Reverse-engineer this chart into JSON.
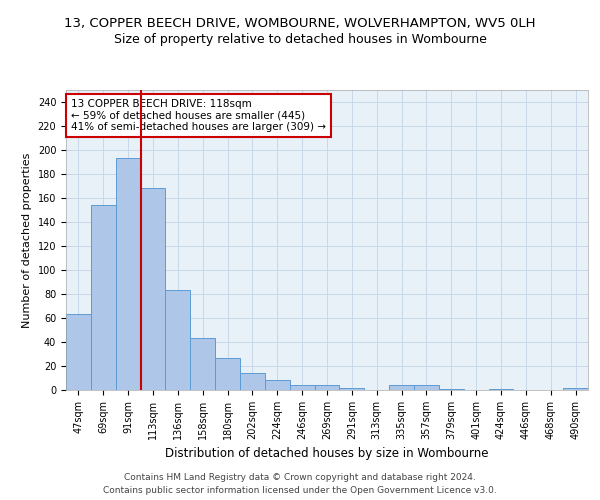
{
  "title_line1": "13, COPPER BEECH DRIVE, WOMBOURNE, WOLVERHAMPTON, WV5 0LH",
  "title_line2": "Size of property relative to detached houses in Wombourne",
  "xlabel": "Distribution of detached houses by size in Wombourne",
  "ylabel": "Number of detached properties",
  "categories": [
    "47sqm",
    "69sqm",
    "91sqm",
    "113sqm",
    "136sqm",
    "158sqm",
    "180sqm",
    "202sqm",
    "224sqm",
    "246sqm",
    "269sqm",
    "291sqm",
    "313sqm",
    "335sqm",
    "357sqm",
    "379sqm",
    "401sqm",
    "424sqm",
    "446sqm",
    "468sqm",
    "490sqm"
  ],
  "values": [
    63,
    154,
    193,
    168,
    83,
    43,
    27,
    14,
    8,
    4,
    4,
    2,
    0,
    4,
    4,
    1,
    0,
    1,
    0,
    0,
    2
  ],
  "bar_color": "#aec6e8",
  "bar_edge_color": "#5b9bd5",
  "vline_x_index": 3,
  "vline_color": "#cc0000",
  "annotation_text": "13 COPPER BEECH DRIVE: 118sqm\n← 59% of detached houses are smaller (445)\n41% of semi-detached houses are larger (309) →",
  "annotation_box_color": "#ffffff",
  "annotation_box_edge": "#cc0000",
  "ylim": [
    0,
    250
  ],
  "yticks": [
    0,
    20,
    40,
    60,
    80,
    100,
    120,
    140,
    160,
    180,
    200,
    220,
    240
  ],
  "grid_color": "#c8d8e8",
  "background_color": "#e8f0f8",
  "footer_line1": "Contains HM Land Registry data © Crown copyright and database right 2024.",
  "footer_line2": "Contains public sector information licensed under the Open Government Licence v3.0.",
  "title1_fontsize": 9.5,
  "title2_fontsize": 9,
  "xlabel_fontsize": 8.5,
  "ylabel_fontsize": 8,
  "tick_fontsize": 7,
  "annotation_fontsize": 7.5,
  "footer_fontsize": 6.5
}
